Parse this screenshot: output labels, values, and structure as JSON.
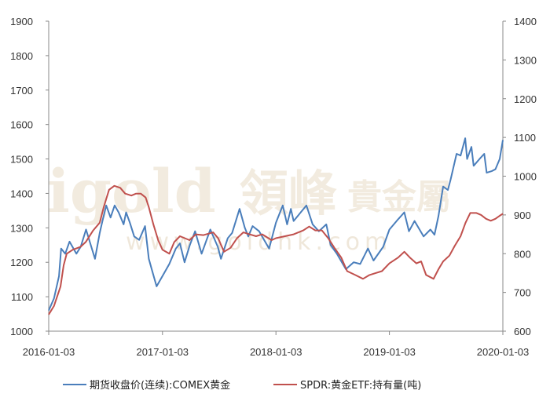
{
  "watermark": {
    "brand_latin": "igold",
    "brand_cn": "領峰",
    "suffix_cn": "貴金屬",
    "url": "www.goldhk.com"
  },
  "chart_data": {
    "type": "line",
    "title": "",
    "x_ticks": [
      "2016-01-03",
      "2017-01-03",
      "2018-01-03",
      "2019-01-03",
      "2020-01-03"
    ],
    "xlim": [
      "2016-01-03",
      "2020-01-03"
    ],
    "y_left": {
      "ticks": [
        1000,
        1100,
        1200,
        1300,
        1400,
        1500,
        1600,
        1700,
        1800,
        1900
      ],
      "ylim": [
        1000,
        1900
      ]
    },
    "y_right": {
      "ticks": [
        600,
        700,
        800,
        900,
        1000,
        1100,
        1200,
        1300,
        1400
      ],
      "ylim": [
        600,
        1400
      ]
    },
    "grid": false,
    "legend_position": "bottom",
    "series": [
      {
        "name": "期货收盘价(连续):COMEX黄金",
        "axis": "left",
        "color": "#4a7ebb",
        "points": [
          [
            "2016-01-03",
            1060
          ],
          [
            "2016-01-20",
            1095
          ],
          [
            "2016-02-05",
            1160
          ],
          [
            "2016-02-12",
            1240
          ],
          [
            "2016-02-25",
            1225
          ],
          [
            "2016-03-10",
            1260
          ],
          [
            "2016-04-01",
            1225
          ],
          [
            "2016-04-15",
            1245
          ],
          [
            "2016-05-02",
            1295
          ],
          [
            "2016-05-31",
            1210
          ],
          [
            "2016-06-15",
            1285
          ],
          [
            "2016-06-24",
            1320
          ],
          [
            "2016-07-06",
            1365
          ],
          [
            "2016-07-20",
            1330
          ],
          [
            "2016-08-02",
            1365
          ],
          [
            "2016-08-15",
            1345
          ],
          [
            "2016-08-31",
            1310
          ],
          [
            "2016-09-08",
            1345
          ],
          [
            "2016-09-20",
            1315
          ],
          [
            "2016-10-04",
            1275
          ],
          [
            "2016-10-20",
            1265
          ],
          [
            "2016-11-08",
            1305
          ],
          [
            "2016-11-20",
            1210
          ],
          [
            "2016-12-01",
            1175
          ],
          [
            "2016-12-15",
            1130
          ],
          [
            "2017-01-03",
            1160
          ],
          [
            "2017-01-25",
            1195
          ],
          [
            "2017-02-15",
            1240
          ],
          [
            "2017-02-28",
            1255
          ],
          [
            "2017-03-15",
            1200
          ],
          [
            "2017-04-01",
            1250
          ],
          [
            "2017-04-18",
            1290
          ],
          [
            "2017-05-09",
            1225
          ],
          [
            "2017-06-06",
            1295
          ],
          [
            "2017-06-30",
            1245
          ],
          [
            "2017-07-10",
            1210
          ],
          [
            "2017-08-01",
            1270
          ],
          [
            "2017-08-15",
            1285
          ],
          [
            "2017-09-08",
            1355
          ],
          [
            "2017-09-25",
            1300
          ],
          [
            "2017-10-06",
            1275
          ],
          [
            "2017-10-20",
            1305
          ],
          [
            "2017-11-10",
            1290
          ],
          [
            "2017-12-12",
            1240
          ],
          [
            "2018-01-03",
            1315
          ],
          [
            "2018-01-25",
            1365
          ],
          [
            "2018-02-08",
            1310
          ],
          [
            "2018-02-20",
            1355
          ],
          [
            "2018-03-01",
            1320
          ],
          [
            "2018-04-11",
            1365
          ],
          [
            "2018-05-01",
            1310
          ],
          [
            "2018-05-21",
            1290
          ],
          [
            "2018-06-14",
            1310
          ],
          [
            "2018-06-28",
            1250
          ],
          [
            "2018-07-18",
            1225
          ],
          [
            "2018-08-16",
            1180
          ],
          [
            "2018-09-10",
            1200
          ],
          [
            "2018-10-01",
            1195
          ],
          [
            "2018-10-26",
            1240
          ],
          [
            "2018-11-13",
            1205
          ],
          [
            "2018-12-14",
            1245
          ],
          [
            "2019-01-03",
            1295
          ],
          [
            "2019-01-31",
            1325
          ],
          [
            "2019-02-20",
            1345
          ],
          [
            "2019-03-07",
            1290
          ],
          [
            "2019-03-25",
            1320
          ],
          [
            "2019-04-23",
            1275
          ],
          [
            "2019-05-15",
            1295
          ],
          [
            "2019-05-28",
            1280
          ],
          [
            "2019-06-10",
            1335
          ],
          [
            "2019-06-25",
            1420
          ],
          [
            "2019-07-10",
            1410
          ],
          [
            "2019-07-19",
            1440
          ],
          [
            "2019-08-07",
            1515
          ],
          [
            "2019-08-20",
            1510
          ],
          [
            "2019-09-04",
            1560
          ],
          [
            "2019-09-10",
            1500
          ],
          [
            "2019-09-24",
            1535
          ],
          [
            "2019-10-01",
            1480
          ],
          [
            "2019-10-20",
            1500
          ],
          [
            "2019-11-04",
            1515
          ],
          [
            "2019-11-12",
            1460
          ],
          [
            "2019-11-29",
            1465
          ],
          [
            "2019-12-10",
            1470
          ],
          [
            "2019-12-24",
            1500
          ],
          [
            "2020-01-03",
            1555
          ]
        ]
      },
      {
        "name": "SPDR:黄金ETF:持有量(吨)",
        "axis": "right",
        "color": "#c0504d",
        "points": [
          [
            "2016-01-03",
            643
          ],
          [
            "2016-01-20",
            665
          ],
          [
            "2016-02-10",
            715
          ],
          [
            "2016-02-20",
            770
          ],
          [
            "2016-03-01",
            800
          ],
          [
            "2016-03-20",
            810
          ],
          [
            "2016-04-15",
            818
          ],
          [
            "2016-05-01",
            830
          ],
          [
            "2016-05-25",
            860
          ],
          [
            "2016-06-15",
            880
          ],
          [
            "2016-06-28",
            920
          ],
          [
            "2016-07-15",
            965
          ],
          [
            "2016-08-01",
            975
          ],
          [
            "2016-08-20",
            970
          ],
          [
            "2016-09-05",
            955
          ],
          [
            "2016-09-25",
            950
          ],
          [
            "2016-10-10",
            955
          ],
          [
            "2016-10-25",
            955
          ],
          [
            "2016-11-10",
            945
          ],
          [
            "2016-11-20",
            920
          ],
          [
            "2016-12-05",
            875
          ],
          [
            "2016-12-20",
            835
          ],
          [
            "2017-01-03",
            810
          ],
          [
            "2017-01-25",
            800
          ],
          [
            "2017-02-10",
            830
          ],
          [
            "2017-02-28",
            845
          ],
          [
            "2017-03-31",
            835
          ],
          [
            "2017-04-20",
            850
          ],
          [
            "2017-05-15",
            848
          ],
          [
            "2017-06-15",
            855
          ],
          [
            "2017-07-01",
            840
          ],
          [
            "2017-07-20",
            805
          ],
          [
            "2017-08-10",
            815
          ],
          [
            "2017-08-31",
            840
          ],
          [
            "2017-09-20",
            855
          ],
          [
            "2017-10-10",
            850
          ],
          [
            "2017-10-31",
            845
          ],
          [
            "2017-11-20",
            850
          ],
          [
            "2017-12-20",
            835
          ],
          [
            "2018-01-03",
            840
          ],
          [
            "2018-02-01",
            845
          ],
          [
            "2018-03-01",
            850
          ],
          [
            "2018-04-01",
            860
          ],
          [
            "2018-04-20",
            870
          ],
          [
            "2018-05-10",
            860
          ],
          [
            "2018-05-31",
            860
          ],
          [
            "2018-06-20",
            840
          ],
          [
            "2018-07-10",
            815
          ],
          [
            "2018-08-01",
            790
          ],
          [
            "2018-08-20",
            755
          ],
          [
            "2018-09-15",
            745
          ],
          [
            "2018-10-10",
            735
          ],
          [
            "2018-10-31",
            745
          ],
          [
            "2018-11-20",
            750
          ],
          [
            "2018-12-10",
            755
          ],
          [
            "2019-01-03",
            775
          ],
          [
            "2019-01-31",
            790
          ],
          [
            "2019-02-20",
            805
          ],
          [
            "2019-03-10",
            790
          ],
          [
            "2019-03-31",
            775
          ],
          [
            "2019-04-15",
            780
          ],
          [
            "2019-05-01",
            745
          ],
          [
            "2019-05-25",
            735
          ],
          [
            "2019-06-10",
            760
          ],
          [
            "2019-06-25",
            780
          ],
          [
            "2019-07-15",
            795
          ],
          [
            "2019-08-01",
            820
          ],
          [
            "2019-08-20",
            845
          ],
          [
            "2019-09-05",
            880
          ],
          [
            "2019-09-20",
            905
          ],
          [
            "2019-10-10",
            905
          ],
          [
            "2019-10-25",
            900
          ],
          [
            "2019-11-10",
            890
          ],
          [
            "2019-11-25",
            885
          ],
          [
            "2019-12-10",
            890
          ],
          [
            "2019-12-24",
            898
          ],
          [
            "2020-01-03",
            903
          ]
        ]
      }
    ]
  }
}
